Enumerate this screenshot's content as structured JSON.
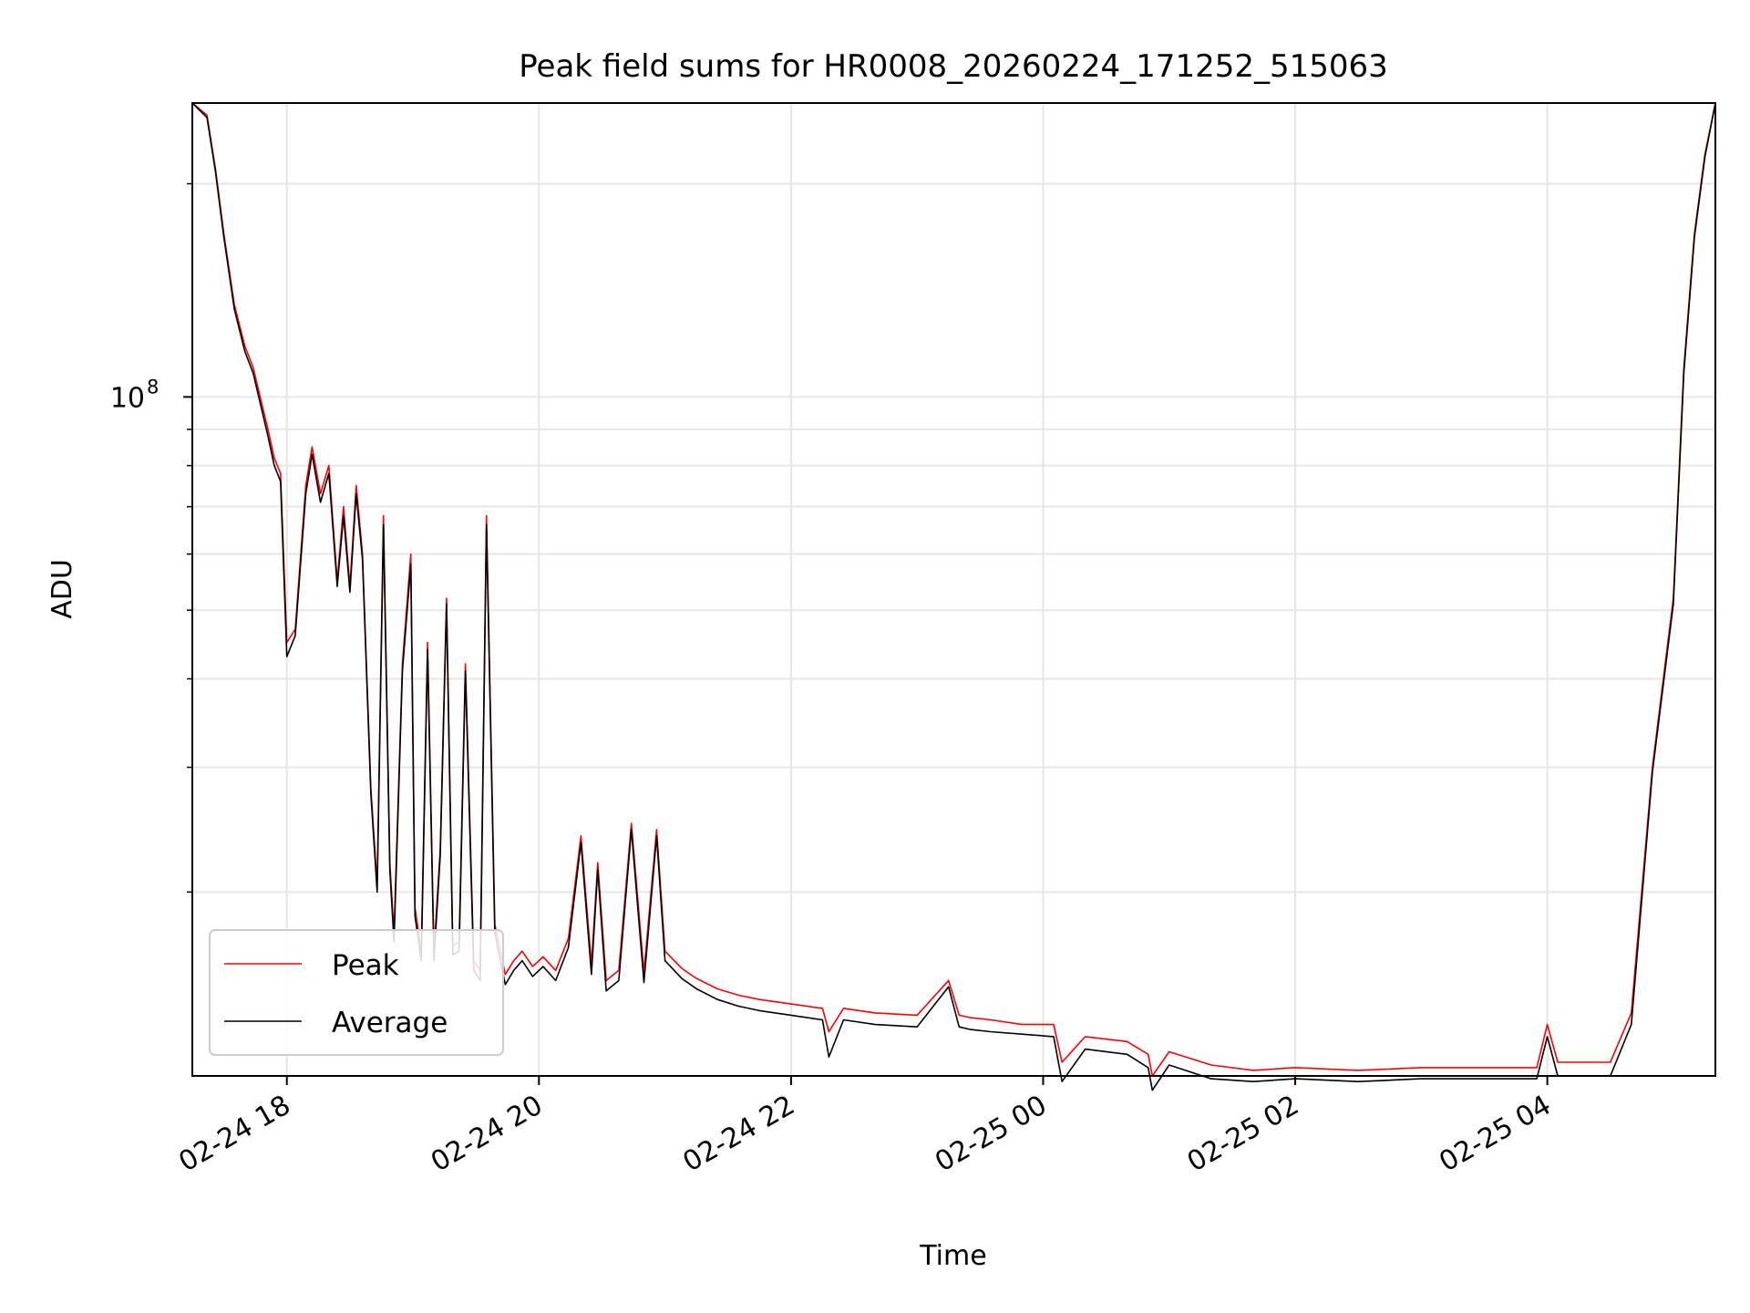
{
  "chart_data": {
    "type": "line",
    "title": "Peak field sums for HR0008_20260224_171252_515063",
    "xlabel": "Time",
    "ylabel": "ADU",
    "yscale": "log",
    "grid": true,
    "legend_position": "lower-left",
    "xlim": [
      "2026-02-24 17:15",
      "2026-02-25 05:20"
    ],
    "ylim": [
      11000000,
      260000000
    ],
    "x_ticks": [
      {
        "t": "2026-02-24 18:00",
        "label": "02-24 18"
      },
      {
        "t": "2026-02-24 20:00",
        "label": "02-24 20"
      },
      {
        "t": "2026-02-24 22:00",
        "label": "02-24 22"
      },
      {
        "t": "2026-02-25 00:00",
        "label": "02-25 00"
      },
      {
        "t": "2026-02-25 02:00",
        "label": "02-25 02"
      },
      {
        "t": "2026-02-25 04:00",
        "label": "02-25 04"
      }
    ],
    "y_major_ticks": [
      {
        "value": 100000000,
        "base": "10",
        "exp": "8"
      }
    ],
    "y_minor_ticks": [
      20000000,
      30000000,
      40000000,
      50000000,
      60000000,
      70000000,
      80000000,
      90000000,
      200000000
    ],
    "series": [
      {
        "name": "Peak",
        "color": "#ff0000",
        "x": [
          "2026-02-24 17:15",
          "2026-02-24 17:22",
          "2026-02-24 17:26",
          "2026-02-24 17:30",
          "2026-02-24 17:35",
          "2026-02-24 17:40",
          "2026-02-24 17:44",
          "2026-02-24 17:48",
          "2026-02-24 17:51",
          "2026-02-24 17:54",
          "2026-02-24 17:57",
          "2026-02-24 18:00",
          "2026-02-24 18:04",
          "2026-02-24 18:09",
          "2026-02-24 18:12",
          "2026-02-24 18:16",
          "2026-02-24 18:20",
          "2026-02-24 18:24",
          "2026-02-24 18:27",
          "2026-02-24 18:30",
          "2026-02-24 18:33",
          "2026-02-24 18:36",
          "2026-02-24 18:40",
          "2026-02-24 18:43",
          "2026-02-24 18:46",
          "2026-02-24 18:49",
          "2026-02-24 18:51",
          "2026-02-24 18:55",
          "2026-02-24 18:59",
          "2026-02-24 19:01",
          "2026-02-24 19:04",
          "2026-02-24 19:07",
          "2026-02-24 19:10",
          "2026-02-24 19:13",
          "2026-02-24 19:16",
          "2026-02-24 19:19",
          "2026-02-24 19:22",
          "2026-02-24 19:25",
          "2026-02-24 19:29",
          "2026-02-24 19:32",
          "2026-02-24 19:35",
          "2026-02-24 19:39",
          "2026-02-24 19:44",
          "2026-02-24 19:48",
          "2026-02-24 19:52",
          "2026-02-24 19:57",
          "2026-02-24 20:02",
          "2026-02-24 20:08",
          "2026-02-24 20:14",
          "2026-02-24 20:20",
          "2026-02-24 20:25",
          "2026-02-24 20:28",
          "2026-02-24 20:32",
          "2026-02-24 20:38",
          "2026-02-24 20:44",
          "2026-02-24 20:50",
          "2026-02-24 20:56",
          "2026-02-24 21:00",
          "2026-02-24 21:08",
          "2026-02-24 21:15",
          "2026-02-24 21:25",
          "2026-02-24 21:35",
          "2026-02-24 21:45",
          "2026-02-24 22:00",
          "2026-02-24 22:15",
          "2026-02-24 22:18",
          "2026-02-24 22:25",
          "2026-02-24 22:40",
          "2026-02-24 23:00",
          "2026-02-24 23:15",
          "2026-02-24 23:20",
          "2026-02-24 23:25",
          "2026-02-24 23:35",
          "2026-02-24 23:50",
          "2026-02-25 00:05",
          "2026-02-25 00:09",
          "2026-02-25 00:20",
          "2026-02-25 00:40",
          "2026-02-25 00:50",
          "2026-02-25 00:52",
          "2026-02-25 01:00",
          "2026-02-25 01:20",
          "2026-02-25 01:40",
          "2026-02-25 02:00",
          "2026-02-25 02:30",
          "2026-02-25 03:00",
          "2026-02-25 03:30",
          "2026-02-25 03:55",
          "2026-02-25 04:00",
          "2026-02-25 04:05",
          "2026-02-25 04:30",
          "2026-02-25 04:40",
          "2026-02-25 04:50",
          "2026-02-25 05:00",
          "2026-02-25 05:05",
          "2026-02-25 05:10",
          "2026-02-25 05:15",
          "2026-02-25 05:20"
        ],
        "y": [
          260000000,
          250000000,
          210000000,
          170000000,
          135000000,
          118000000,
          110000000,
          98000000,
          90000000,
          82000000,
          78000000,
          45000000,
          47000000,
          75000000,
          85000000,
          73000000,
          80000000,
          55000000,
          70000000,
          54000000,
          75000000,
          60000000,
          28000000,
          20500000,
          68000000,
          22000000,
          17500000,
          42000000,
          60000000,
          19000000,
          16500000,
          45000000,
          16500000,
          23000000,
          52000000,
          16800000,
          17000000,
          42000000,
          16000000,
          15500000,
          68000000,
          18000000,
          15300000,
          16000000,
          16500000,
          15700000,
          16200000,
          15500000,
          17200000,
          24000000,
          15800000,
          22000000,
          15000000,
          15500000,
          25000000,
          15400000,
          24500000,
          16500000,
          15600000,
          15100000,
          14600000,
          14300000,
          14100000,
          13900000,
          13700000,
          12700000,
          13700000,
          13500000,
          13400000,
          15000000,
          13400000,
          13300000,
          13200000,
          13000000,
          13000000,
          11500000,
          12500000,
          12300000,
          11800000,
          11000000,
          11900000,
          11400000,
          11200000,
          11300000,
          11200000,
          11300000,
          11300000,
          11300000,
          13000000,
          11500000,
          11500000,
          13500000,
          30000000,
          52000000,
          110000000,
          170000000,
          220000000,
          260000000
        ]
      },
      {
        "name": "Average",
        "color": "#000000",
        "x": [
          "2026-02-24 17:15",
          "2026-02-24 17:22",
          "2026-02-24 17:26",
          "2026-02-24 17:30",
          "2026-02-24 17:35",
          "2026-02-24 17:40",
          "2026-02-24 17:44",
          "2026-02-24 17:48",
          "2026-02-24 17:51",
          "2026-02-24 17:54",
          "2026-02-24 17:57",
          "2026-02-24 18:00",
          "2026-02-24 18:04",
          "2026-02-24 18:09",
          "2026-02-24 18:12",
          "2026-02-24 18:16",
          "2026-02-24 18:20",
          "2026-02-24 18:24",
          "2026-02-24 18:27",
          "2026-02-24 18:30",
          "2026-02-24 18:33",
          "2026-02-24 18:36",
          "2026-02-24 18:40",
          "2026-02-24 18:43",
          "2026-02-24 18:46",
          "2026-02-24 18:49",
          "2026-02-24 18:51",
          "2026-02-24 18:55",
          "2026-02-24 18:59",
          "2026-02-24 19:01",
          "2026-02-24 19:04",
          "2026-02-24 19:07",
          "2026-02-24 19:10",
          "2026-02-24 19:13",
          "2026-02-24 19:16",
          "2026-02-24 19:19",
          "2026-02-24 19:22",
          "2026-02-24 19:25",
          "2026-02-24 19:29",
          "2026-02-24 19:32",
          "2026-02-24 19:35",
          "2026-02-24 19:39",
          "2026-02-24 19:44",
          "2026-02-24 19:48",
          "2026-02-24 19:52",
          "2026-02-24 19:57",
          "2026-02-24 20:02",
          "2026-02-24 20:08",
          "2026-02-24 20:14",
          "2026-02-24 20:20",
          "2026-02-24 20:25",
          "2026-02-24 20:28",
          "2026-02-24 20:32",
          "2026-02-24 20:38",
          "2026-02-24 20:44",
          "2026-02-24 20:50",
          "2026-02-24 20:56",
          "2026-02-24 21:00",
          "2026-02-24 21:08",
          "2026-02-24 21:15",
          "2026-02-24 21:25",
          "2026-02-24 21:35",
          "2026-02-24 21:45",
          "2026-02-24 22:00",
          "2026-02-24 22:15",
          "2026-02-24 22:18",
          "2026-02-24 22:25",
          "2026-02-24 22:40",
          "2026-02-24 23:00",
          "2026-02-24 23:15",
          "2026-02-24 23:20",
          "2026-02-24 23:25",
          "2026-02-24 23:35",
          "2026-02-24 23:50",
          "2026-02-25 00:05",
          "2026-02-25 00:09",
          "2026-02-25 00:20",
          "2026-02-25 00:40",
          "2026-02-25 00:50",
          "2026-02-25 00:52",
          "2026-02-25 01:00",
          "2026-02-25 01:20",
          "2026-02-25 01:40",
          "2026-02-25 02:00",
          "2026-02-25 02:30",
          "2026-02-25 03:00",
          "2026-02-25 03:30",
          "2026-02-25 03:55",
          "2026-02-25 04:00",
          "2026-02-25 04:05",
          "2026-02-25 04:30",
          "2026-02-25 04:40",
          "2026-02-25 04:50",
          "2026-02-25 05:00",
          "2026-02-25 05:05",
          "2026-02-25 05:10",
          "2026-02-25 05:15",
          "2026-02-25 05:20"
        ],
        "y": [
          260000000,
          248000000,
          208000000,
          168000000,
          133000000,
          116000000,
          108000000,
          96000000,
          88000000,
          80000000,
          76000000,
          43000000,
          46000000,
          73000000,
          83000000,
          71000000,
          78000000,
          54000000,
          68000000,
          53000000,
          73000000,
          59000000,
          27500000,
          20000000,
          66000000,
          21500000,
          17000000,
          41000000,
          58000000,
          18500000,
          16000000,
          44000000,
          16000000,
          22500000,
          51000000,
          16300000,
          16500000,
          41000000,
          15500000,
          15000000,
          66000000,
          17500000,
          14800000,
          15500000,
          16000000,
          15200000,
          15700000,
          15000000,
          16700000,
          23500000,
          15300000,
          21500000,
          14500000,
          15000000,
          24500000,
          14900000,
          24000000,
          16000000,
          15100000,
          14600000,
          14100000,
          13800000,
          13600000,
          13400000,
          13200000,
          11700000,
          13200000,
          13000000,
          12900000,
          14700000,
          12900000,
          12800000,
          12700000,
          12600000,
          12500000,
          10800000,
          12000000,
          11800000,
          11300000,
          10500000,
          11400000,
          10900000,
          10800000,
          10900000,
          10800000,
          10900000,
          10900000,
          10900000,
          12500000,
          11000000,
          11000000,
          13000000,
          29500000,
          51000000,
          108000000,
          168000000,
          218000000,
          260000000
        ]
      }
    ]
  }
}
